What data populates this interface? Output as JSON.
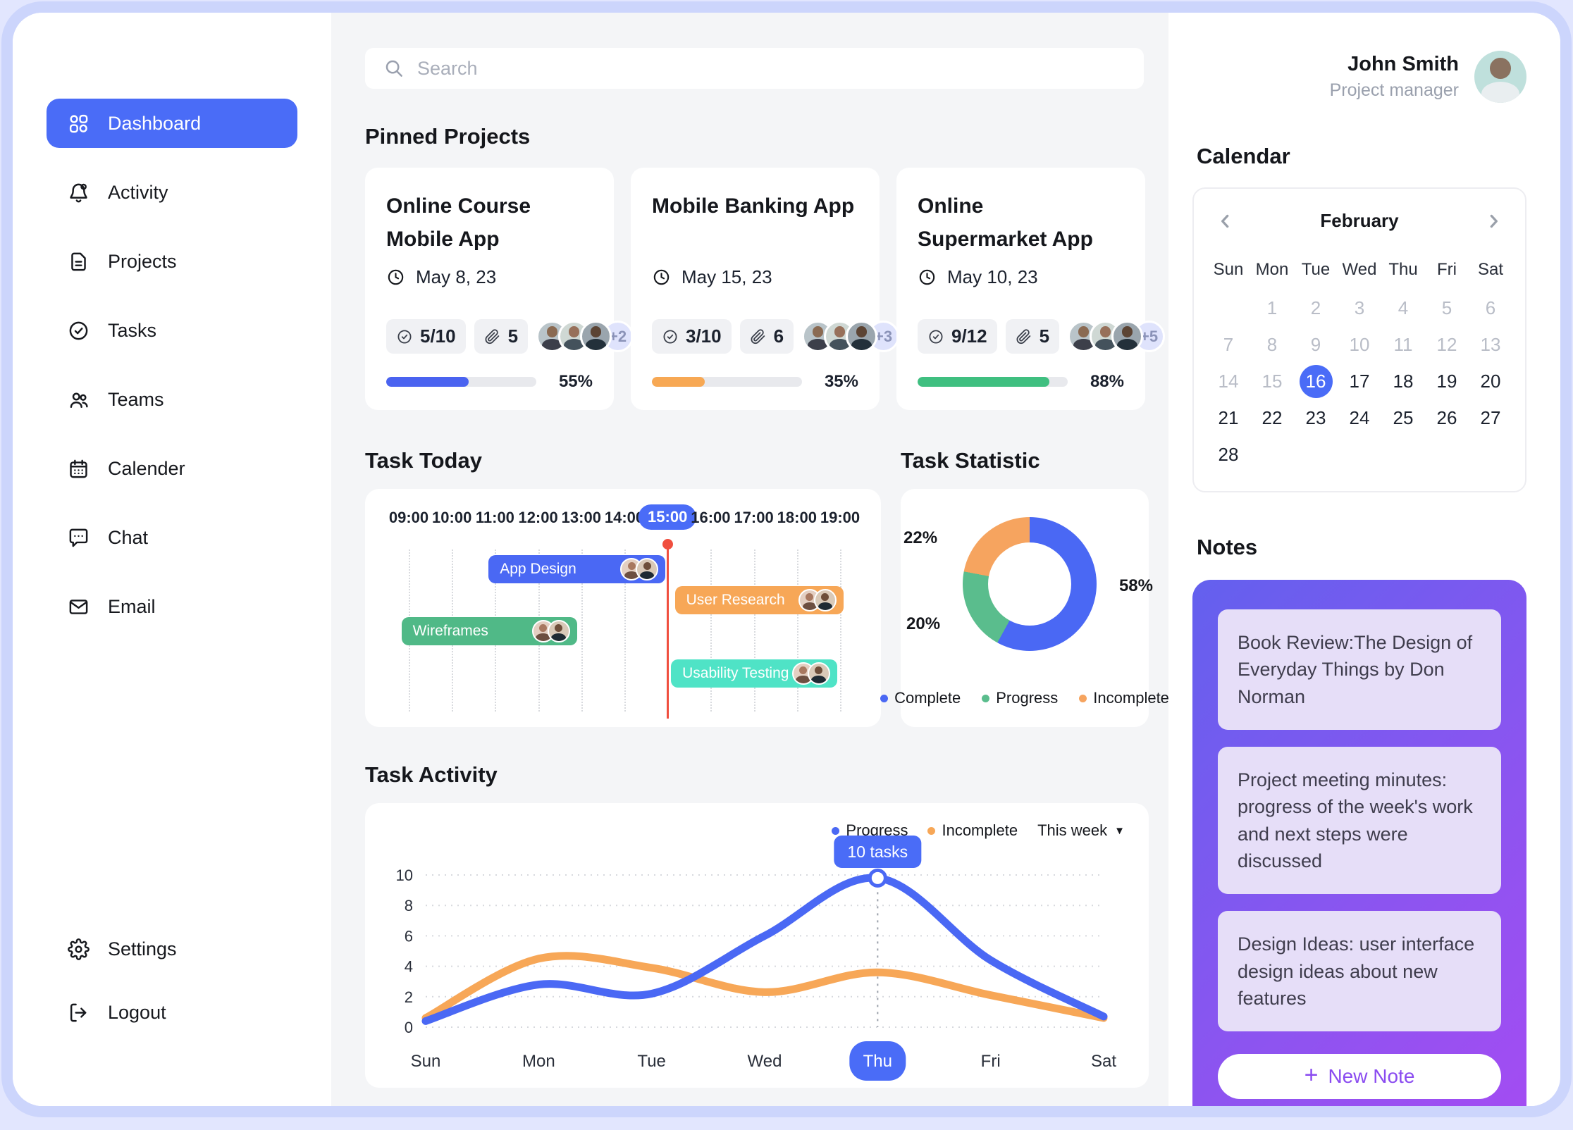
{
  "search": {
    "placeholder": "Search"
  },
  "sidebar": {
    "items": [
      {
        "label": "Dashboard",
        "icon": "dashboard-icon",
        "active": true
      },
      {
        "label": "Activity",
        "icon": "activity-icon",
        "active": false
      },
      {
        "label": "Projects",
        "icon": "projects-icon",
        "active": false
      },
      {
        "label": "Tasks",
        "icon": "tasks-icon",
        "active": false
      },
      {
        "label": "Teams",
        "icon": "teams-icon",
        "active": false
      },
      {
        "label": "Calender",
        "icon": "calendar-icon",
        "active": false
      },
      {
        "label": "Chat",
        "icon": "chat-icon",
        "active": false
      },
      {
        "label": "Email",
        "icon": "email-icon",
        "active": false
      }
    ],
    "footer": [
      {
        "label": "Settings",
        "icon": "settings-icon",
        "active": false
      },
      {
        "label": "Logout",
        "icon": "logout-icon",
        "active": false
      }
    ]
  },
  "sections": {
    "pinned": "Pinned Projects",
    "task_today": "Task Today",
    "task_statistic": "Task Statistic",
    "task_activity": "Task Activity"
  },
  "projects": [
    {
      "title": "Online Course\nMobile App",
      "date": "May 8, 23",
      "tasks": "5/10",
      "attachments": "5",
      "more": "+2",
      "percent": 55,
      "color": "#4a63f0",
      "percent_label": "55%"
    },
    {
      "title": "Mobile Banking App",
      "date": "May 15, 23",
      "tasks": "3/10",
      "attachments": "6",
      "more": "+3",
      "percent": 35,
      "color": "#f7a854",
      "percent_label": "35%"
    },
    {
      "title": "Online\nSupermarket App",
      "date": "May 10, 23",
      "tasks": "9/12",
      "attachments": "5",
      "more": "+5",
      "percent": 88,
      "color": "#3fbf80",
      "percent_label": "88%"
    }
  ],
  "chart_data": [
    {
      "type": "gantt",
      "title": "Task Today",
      "hours": [
        "09:00",
        "10:00",
        "11:00",
        "12:00",
        "13:00",
        "14:00",
        "15:00",
        "16:00",
        "17:00",
        "18:00",
        "19:00"
      ],
      "axis_start": 9,
      "axis_end": 19,
      "current_time": 15,
      "current_label": "15:00",
      "now_color": "#f04f3f",
      "bars": [
        {
          "label": "App Design",
          "start": 10.85,
          "end": 14.95,
          "color": "#4a68f4",
          "row": 0
        },
        {
          "label": "User Research",
          "start": 15.17,
          "end": 19.08,
          "color": "#f7a757",
          "row": 1
        },
        {
          "label": "Wireframes",
          "start": 8.83,
          "end": 12.9,
          "color": "#50b987",
          "row": 2
        },
        {
          "label": "Usability Testing",
          "start": 15.08,
          "end": 18.93,
          "color": "#4fe3c6",
          "row": 3
        }
      ]
    },
    {
      "type": "pie",
      "title": "Task Statistic",
      "donut": true,
      "slices": [
        {
          "label": "Complete",
          "value": 58,
          "color": "#4a68f4",
          "text": "58%"
        },
        {
          "label": "Progress",
          "value": 20,
          "color": "#5abd8d",
          "text": "20%"
        },
        {
          "label": "Incomplete",
          "value": 22,
          "color": "#f6a45f",
          "text": "22%"
        }
      ]
    },
    {
      "type": "line",
      "title": "Task Activity",
      "x": [
        "Sun",
        "Mon",
        "Tue",
        "Wed",
        "Thu",
        "Fri",
        "Sat"
      ],
      "series": [
        {
          "name": "Progress",
          "color": "#4a68f4",
          "values": [
            0.4,
            2.8,
            2.2,
            6.0,
            9.8,
            4.4,
            0.7
          ]
        },
        {
          "name": "Incomplete",
          "color": "#f7a757",
          "values": [
            0.6,
            4.5,
            3.9,
            2.3,
            3.6,
            2.1,
            0.6
          ]
        }
      ],
      "yticks": [
        0,
        2,
        4,
        6,
        8,
        10
      ],
      "ylim": [
        0,
        10
      ],
      "grid": true,
      "legend_position": "top-right",
      "highlight_x": "Thu",
      "tooltip": "10 tasks",
      "range_label": "This week"
    }
  ],
  "profile": {
    "name": "John Smith",
    "role": "Project manager"
  },
  "calendar": {
    "title": "Calendar",
    "month": "February",
    "weekdays": [
      "Sun",
      "Mon",
      "Tue",
      "Wed",
      "Thu",
      "Fri",
      "Sat"
    ],
    "first_day_offset": 1,
    "num_days": 28,
    "muted_through": 15,
    "selected_day": 16
  },
  "notes": {
    "title": "Notes",
    "items": [
      "Book Review:The Design of Everyday Things by Don Norman",
      "Project meeting minutes: progress of the week's work and next steps were discussed",
      "Design Ideas: user interface design ideas about new features"
    ],
    "new_note_label": "New Note"
  }
}
